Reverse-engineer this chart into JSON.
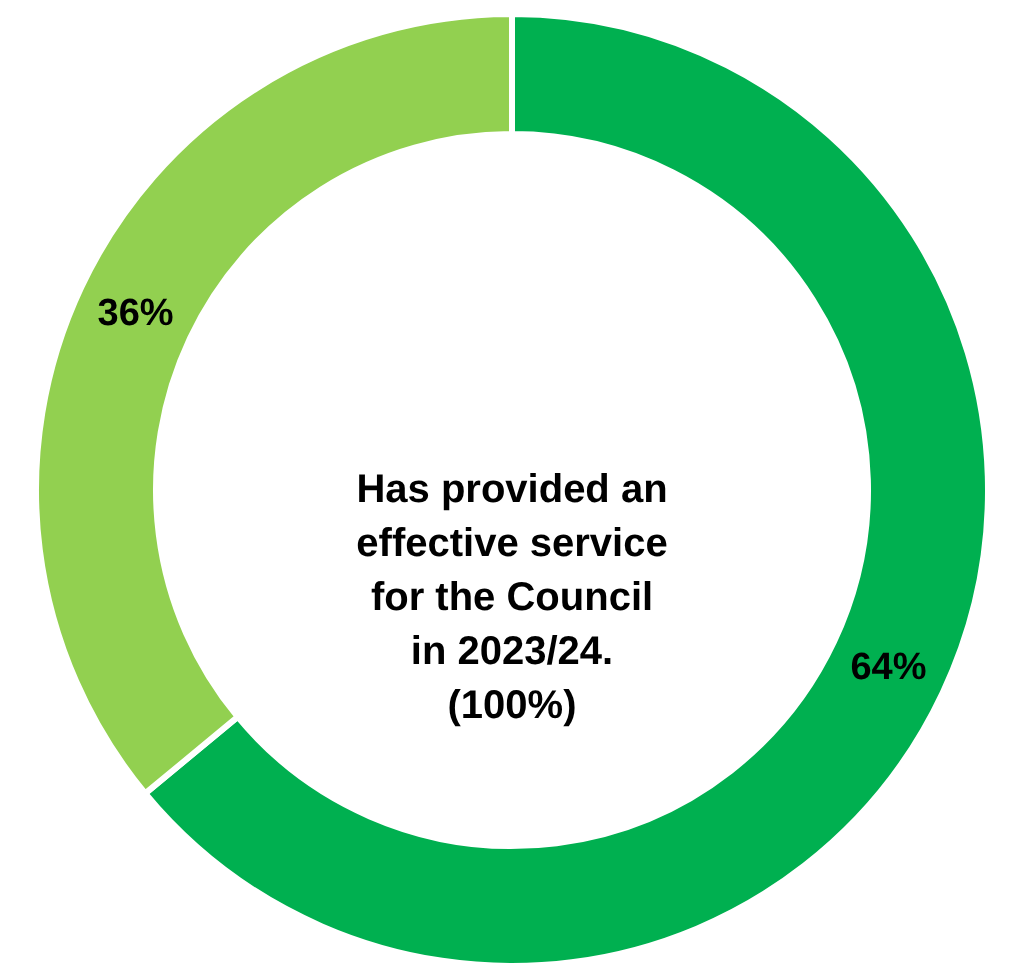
{
  "chart_data": {
    "type": "donut",
    "categories": [
      null,
      null
    ],
    "values": [
      64,
      36
    ],
    "colors": [
      "#00b050",
      "#92d050"
    ],
    "value_labels": [
      "64%",
      "36%"
    ],
    "annotations": [
      "Has provided an effective service for the Council in 2023/24. (100%)"
    ],
    "legend": false
  }
}
